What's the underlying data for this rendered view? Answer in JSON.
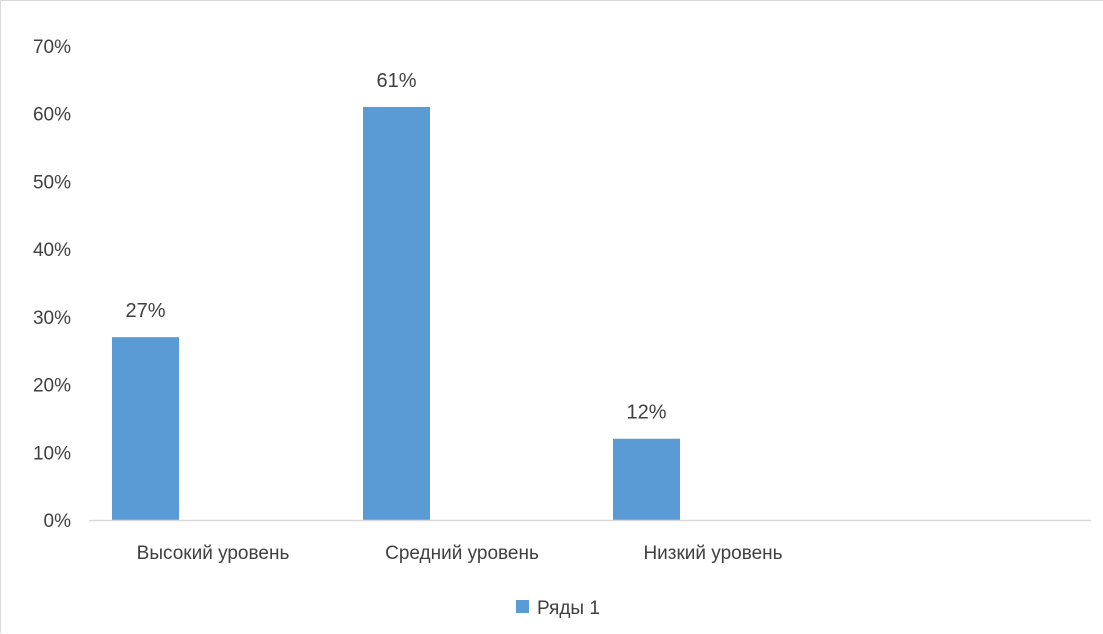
{
  "chart_data": {
    "type": "bar",
    "categories": [
      "Высокий уровень",
      "Средний уровень",
      "Низкий уровень"
    ],
    "series": [
      {
        "name": "Ряды 1",
        "values": [
          27,
          61,
          12
        ],
        "value_labels": [
          "27%",
          "61%",
          "12%"
        ],
        "color": "#5b9bd5"
      }
    ],
    "ylim": [
      0,
      70
    ],
    "y_ticks": [
      0,
      10,
      20,
      30,
      40,
      50,
      60,
      70
    ],
    "y_tick_labels": [
      "0%",
      "10%",
      "20%",
      "30%",
      "40%",
      "50%",
      "60%",
      "70%"
    ],
    "title": "",
    "xlabel": "",
    "ylabel": "",
    "grid": false,
    "legend": "bottom"
  },
  "colors": {
    "bar": "#5b9bd5",
    "axis": "#d9d9d9",
    "text": "#404040"
  }
}
